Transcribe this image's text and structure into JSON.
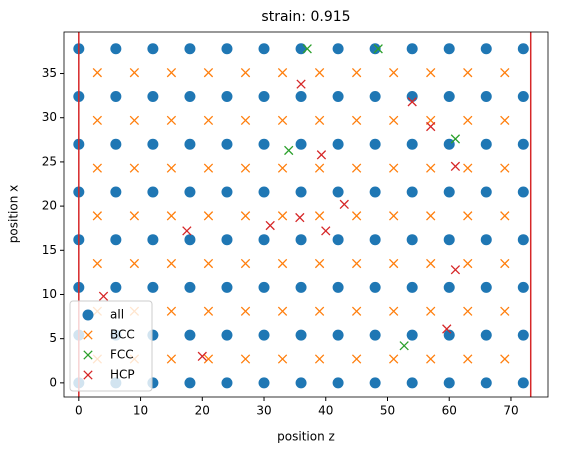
{
  "chart_data": {
    "type": "scatter",
    "title": "strain: 0.915",
    "xlabel": "position z",
    "ylabel": "position x",
    "xlim": [
      -2.4,
      76
    ],
    "ylim": [
      -1.6,
      39.7
    ],
    "xticks": [
      0,
      10,
      20,
      30,
      40,
      50,
      60,
      70
    ],
    "yticks": [
      0,
      5,
      10,
      15,
      20,
      25,
      30,
      35
    ],
    "vlines": [
      0,
      73.2
    ],
    "vline_color": "#d62728",
    "legend": "lower left",
    "series": [
      {
        "name": "all",
        "color": "#1f77b4",
        "marker": "o",
        "x": [
          0,
          6,
          12,
          18,
          24,
          30,
          36,
          42,
          48,
          54,
          60,
          66,
          72,
          0,
          6,
          12,
          18,
          24,
          30,
          36,
          42,
          48,
          54,
          60,
          66,
          72,
          0,
          6,
          12,
          18,
          24,
          30,
          36,
          42,
          48,
          54,
          60,
          66,
          72,
          0,
          6,
          12,
          18,
          24,
          30,
          36,
          42,
          48,
          54,
          60,
          66,
          72,
          0,
          6,
          12,
          18,
          24,
          30,
          36,
          42,
          48,
          54,
          60,
          66,
          72,
          0,
          6,
          12,
          18,
          24,
          30,
          36,
          42,
          48,
          54,
          60,
          66,
          72,
          0,
          6,
          12,
          18,
          24,
          30,
          36,
          42,
          48,
          54,
          60,
          66,
          72,
          0,
          6,
          12,
          18,
          24,
          30,
          36,
          42,
          48,
          54,
          60,
          66,
          72
        ],
        "y": [
          0,
          0,
          0,
          0,
          0,
          0,
          0,
          0,
          0,
          0,
          0,
          0,
          0,
          5.4,
          5.4,
          5.4,
          5.4,
          5.4,
          5.4,
          5.4,
          5.4,
          5.4,
          5.4,
          5.4,
          5.4,
          5.4,
          10.8,
          10.8,
          10.8,
          10.8,
          10.8,
          10.8,
          10.8,
          10.8,
          10.8,
          10.8,
          10.8,
          10.8,
          10.8,
          16.2,
          16.2,
          16.2,
          16.2,
          16.2,
          16.2,
          16.2,
          16.2,
          16.2,
          16.2,
          16.2,
          16.2,
          16.2,
          21.6,
          21.6,
          21.6,
          21.6,
          21.6,
          21.6,
          21.6,
          21.6,
          21.6,
          21.6,
          21.6,
          21.6,
          21.6,
          27,
          27,
          27,
          27,
          27,
          27,
          27,
          27,
          27,
          27,
          27,
          27,
          27,
          32.4,
          32.4,
          32.4,
          32.4,
          32.4,
          32.4,
          32.4,
          32.4,
          32.4,
          32.4,
          32.4,
          32.4,
          32.4,
          37.8,
          37.8,
          37.8,
          37.8,
          37.8,
          37.8,
          37.8,
          37.8,
          37.8,
          37.8,
          37.8,
          37.8,
          37.8
        ]
      },
      {
        "name": "BCC",
        "color": "#ff7f0e",
        "marker": "x",
        "x": [
          3,
          9,
          15,
          21,
          27,
          33,
          39,
          45,
          51,
          57,
          63,
          69,
          3,
          9,
          15,
          21,
          27,
          33,
          39,
          45,
          51,
          57,
          63,
          69,
          3,
          9,
          15,
          21,
          27,
          33,
          39,
          45,
          51,
          57,
          63,
          69,
          3,
          9,
          15,
          21,
          27,
          33,
          39,
          45,
          51,
          57,
          63,
          69,
          3,
          9,
          15,
          21,
          27,
          33,
          39,
          45,
          51,
          57,
          63,
          69,
          3,
          9,
          15,
          21,
          27,
          33,
          39,
          45,
          51,
          57,
          63,
          69,
          3,
          9,
          15,
          21,
          27,
          33,
          39,
          45,
          51,
          57,
          63,
          69
        ],
        "y": [
          2.7,
          2.7,
          2.7,
          2.7,
          2.7,
          2.7,
          2.7,
          2.7,
          2.7,
          2.7,
          2.7,
          2.7,
          8.1,
          8.1,
          8.1,
          8.1,
          8.1,
          8.1,
          8.1,
          8.1,
          8.1,
          8.1,
          8.1,
          8.1,
          13.5,
          13.5,
          13.5,
          13.5,
          13.5,
          13.5,
          13.5,
          13.5,
          13.5,
          13.5,
          13.5,
          13.5,
          18.9,
          18.9,
          18.9,
          18.9,
          18.9,
          18.9,
          18.9,
          18.9,
          18.9,
          18.9,
          18.9,
          18.9,
          24.3,
          24.3,
          24.3,
          24.3,
          24.3,
          24.3,
          24.3,
          24.3,
          24.3,
          24.3,
          24.3,
          24.3,
          29.7,
          29.7,
          29.7,
          29.7,
          29.7,
          29.7,
          29.7,
          29.7,
          29.7,
          29.7,
          29.7,
          29.7,
          35.1,
          35.1,
          35.1,
          35.1,
          35.1,
          35.1,
          35.1,
          35.1,
          35.1,
          35.1,
          35.1,
          35.1
        ]
      },
      {
        "name": "FCC",
        "color": "#2ca02c",
        "marker": "x",
        "x": [
          34,
          48.5,
          52.7,
          61,
          37
        ],
        "y": [
          26.3,
          37.8,
          4.2,
          27.6,
          37.8
        ]
      },
      {
        "name": "HCP",
        "color": "#d62728",
        "marker": "x",
        "x": [
          20,
          17.5,
          31,
          35.8,
          43,
          40,
          61,
          61,
          54,
          57,
          4,
          59.6,
          39.3,
          36
        ],
        "y": [
          3,
          17.2,
          17.8,
          18.7,
          20.2,
          17.2,
          12.8,
          24.5,
          31.8,
          29,
          9.8,
          6.1,
          25.8,
          33.8
        ]
      }
    ]
  }
}
